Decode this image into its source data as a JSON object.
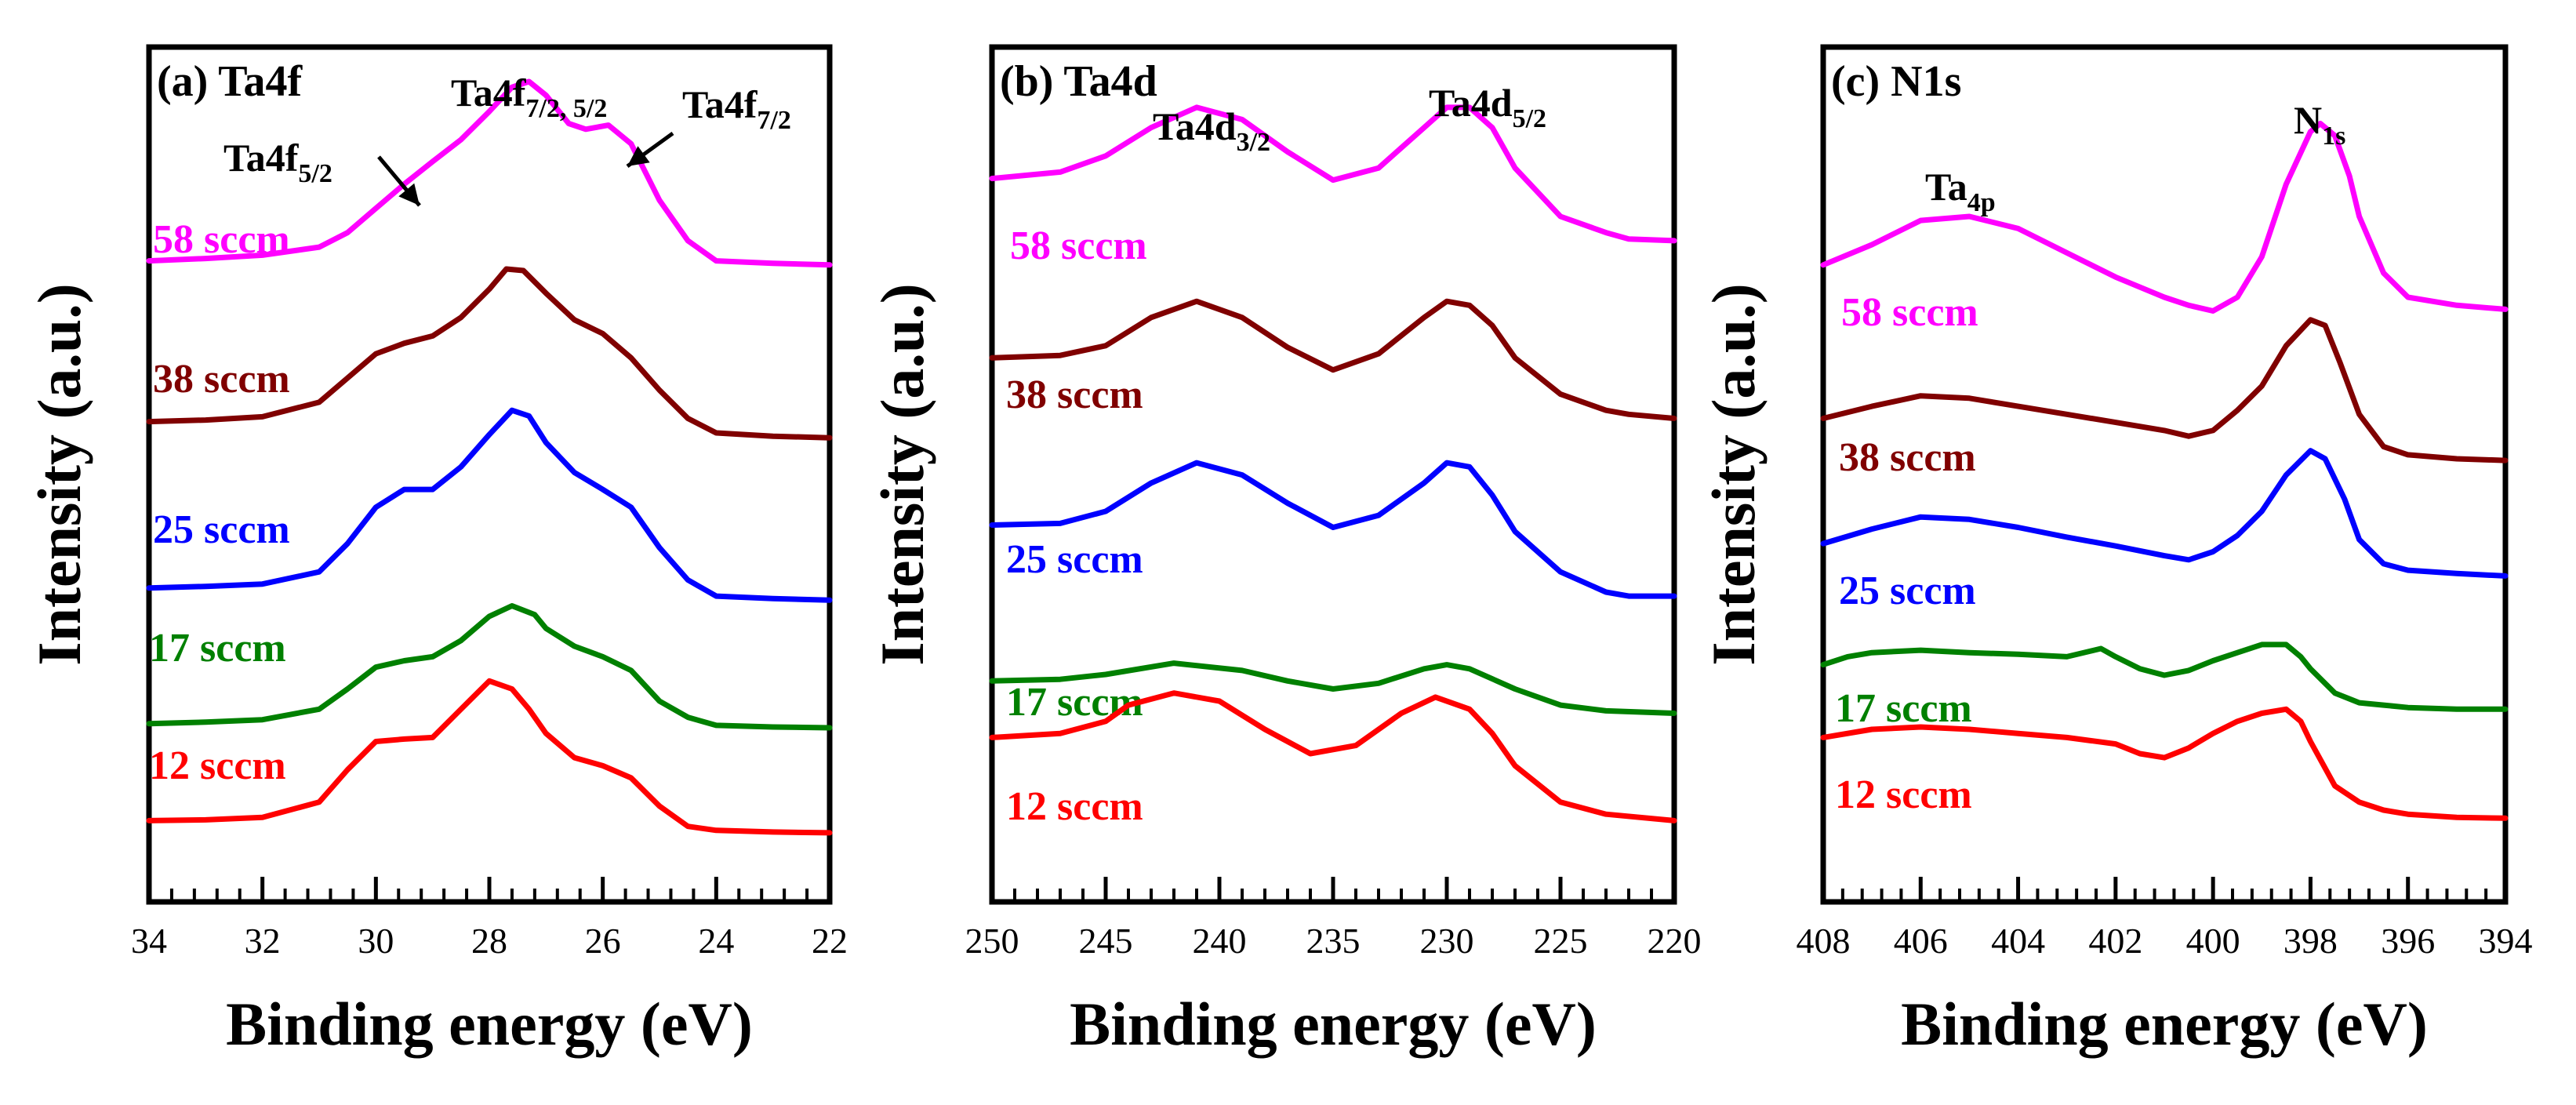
{
  "chart_data": [
    {
      "type": "line",
      "title": "(a) Ta4f",
      "xlabel": "Binding energy (eV)",
      "ylabel": "Intensity (a.u.)",
      "xlim": [
        34,
        22
      ],
      "ylim": [
        0,
        1
      ],
      "xticks": [
        "34",
        "32",
        "30",
        "28",
        "26",
        "24",
        "22"
      ],
      "xtick_values": [
        34,
        32,
        30,
        28,
        26,
        24,
        22
      ],
      "annotations": [
        {
          "base": "Ta4f",
          "sub": "5/2",
          "x": 29.3,
          "y": 0.877
        },
        {
          "base": "Ta4f",
          "sub": "7/2, 5/2",
          "x": 27.3,
          "y": 0.94
        },
        {
          "base": "Ta4f",
          "sub": "7/2",
          "x": 25.8,
          "y": 0.92
        }
      ],
      "series": [
        {
          "name": "58 sccm",
          "color": "#ff00ff",
          "x": [
            34,
            33,
            32,
            31,
            30.5,
            30,
            29.5,
            29,
            28.5,
            28,
            27.6,
            27.3,
            27,
            26.6,
            26.3,
            25.9,
            25.5,
            25,
            24.5,
            24,
            23,
            22
          ],
          "y": [
            0.745,
            0.748,
            0.752,
            0.762,
            0.78,
            0.81,
            0.84,
            0.868,
            0.895,
            0.93,
            0.96,
            0.967,
            0.95,
            0.915,
            0.908,
            0.913,
            0.89,
            0.82,
            0.77,
            0.745,
            0.742,
            0.74
          ]
        },
        {
          "name": "38 sccm",
          "color": "#800000",
          "x": [
            34,
            33,
            32,
            31,
            30.5,
            30,
            29.5,
            29,
            28.5,
            28,
            27.7,
            27.4,
            27,
            26.5,
            26,
            25.5,
            25,
            24.5,
            24,
            23,
            22
          ],
          "y": [
            0.546,
            0.548,
            0.552,
            0.57,
            0.6,
            0.63,
            0.643,
            0.652,
            0.675,
            0.71,
            0.735,
            0.733,
            0.705,
            0.672,
            0.655,
            0.625,
            0.585,
            0.55,
            0.532,
            0.528,
            0.526
          ]
        },
        {
          "name": "25 sccm",
          "color": "#0000ff",
          "x": [
            34,
            33,
            32,
            31,
            30.5,
            30,
            29.5,
            29,
            28.5,
            28,
            27.6,
            27.3,
            27,
            26.5,
            26,
            25.5,
            25,
            24.5,
            24,
            23,
            22
          ],
          "y": [
            0.34,
            0.342,
            0.345,
            0.36,
            0.395,
            0.44,
            0.462,
            0.462,
            0.49,
            0.53,
            0.56,
            0.553,
            0.52,
            0.483,
            0.462,
            0.44,
            0.39,
            0.35,
            0.33,
            0.327,
            0.325
          ]
        },
        {
          "name": "17 sccm",
          "color": "#008000",
          "x": [
            34,
            33,
            32,
            31,
            30.5,
            30,
            29.5,
            29,
            28.5,
            28,
            27.6,
            27.2,
            27,
            26.5,
            26,
            25.5,
            25,
            24.5,
            24,
            23,
            22
          ],
          "y": [
            0.172,
            0.174,
            0.177,
            0.19,
            0.215,
            0.242,
            0.25,
            0.255,
            0.275,
            0.305,
            0.318,
            0.307,
            0.29,
            0.268,
            0.255,
            0.238,
            0.2,
            0.18,
            0.17,
            0.168,
            0.167
          ]
        },
        {
          "name": "12 sccm",
          "color": "#ff0000",
          "x": [
            34,
            33,
            32,
            31,
            30.5,
            30,
            29.5,
            29,
            28.5,
            28,
            27.6,
            27.3,
            27,
            26.5,
            26,
            25.5,
            25,
            24.5,
            24,
            23,
            22
          ],
          "y": [
            0.052,
            0.053,
            0.056,
            0.075,
            0.115,
            0.15,
            0.153,
            0.155,
            0.19,
            0.225,
            0.215,
            0.19,
            0.16,
            0.13,
            0.12,
            0.105,
            0.07,
            0.045,
            0.04,
            0.038,
            0.037
          ]
        }
      ]
    },
    {
      "type": "line",
      "title": "(b) Ta4d",
      "xlabel": "Binding energy (eV)",
      "ylabel": "Intensity (a.u.)",
      "xlim": [
        250,
        220
      ],
      "ylim": [
        0,
        1
      ],
      "xticks": [
        "250",
        "245",
        "240",
        "235",
        "230",
        "225",
        "220"
      ],
      "xtick_values": [
        250,
        245,
        240,
        235,
        230,
        225,
        220
      ],
      "annotations": [
        {
          "base": "Ta4d",
          "sub": "3/2",
          "x": 241,
          "y": 0.95
        },
        {
          "base": "Ta4d",
          "sub": "5/2",
          "x": 229.5,
          "y": 0.95
        }
      ],
      "series": [
        {
          "name": "58 sccm",
          "color": "#ff00ff",
          "x": [
            250,
            247,
            245,
            243,
            241,
            239,
            237,
            235,
            233,
            231,
            230,
            229,
            228,
            227,
            225,
            223,
            222,
            220
          ],
          "y": [
            0.847,
            0.855,
            0.875,
            0.91,
            0.935,
            0.92,
            0.88,
            0.845,
            0.86,
            0.91,
            0.935,
            0.935,
            0.91,
            0.86,
            0.8,
            0.78,
            0.772,
            0.77
          ]
        },
        {
          "name": "38 sccm",
          "color": "#800000",
          "x": [
            250,
            247,
            245,
            243,
            241,
            239,
            237,
            235,
            233,
            231,
            230,
            229,
            228,
            227,
            225,
            223,
            222,
            220
          ],
          "y": [
            0.625,
            0.628,
            0.64,
            0.675,
            0.695,
            0.675,
            0.638,
            0.61,
            0.63,
            0.675,
            0.695,
            0.69,
            0.665,
            0.625,
            0.58,
            0.56,
            0.555,
            0.55
          ]
        },
        {
          "name": "25 sccm",
          "color": "#0000ff",
          "x": [
            250,
            247,
            245,
            243,
            241,
            239,
            237,
            235,
            233,
            231,
            230,
            229,
            228,
            227,
            225,
            223,
            222,
            220
          ],
          "y": [
            0.418,
            0.42,
            0.435,
            0.47,
            0.495,
            0.48,
            0.445,
            0.415,
            0.43,
            0.47,
            0.495,
            0.49,
            0.455,
            0.41,
            0.36,
            0.335,
            0.33,
            0.33
          ]
        },
        {
          "name": "17 sccm",
          "color": "#008000",
          "x": [
            250,
            247,
            245,
            242,
            239,
            237,
            235,
            233,
            231,
            230,
            229,
            227,
            225,
            223,
            220
          ],
          "y": [
            0.225,
            0.227,
            0.233,
            0.247,
            0.238,
            0.225,
            0.215,
            0.222,
            0.24,
            0.245,
            0.24,
            0.215,
            0.195,
            0.188,
            0.185
          ]
        },
        {
          "name": "12 sccm",
          "color": "#ff0000",
          "x": [
            250,
            247,
            245,
            244,
            242,
            240,
            238,
            236,
            234,
            232,
            230.5,
            229,
            228,
            227,
            225,
            223,
            220
          ],
          "y": [
            0.155,
            0.16,
            0.175,
            0.195,
            0.21,
            0.2,
            0.165,
            0.135,
            0.145,
            0.185,
            0.205,
            0.19,
            0.16,
            0.12,
            0.075,
            0.06,
            0.052
          ]
        }
      ]
    },
    {
      "type": "line",
      "title": "(c) N1s",
      "xlabel": "Binding energy (eV)",
      "ylabel": "Intensity (a.u.)",
      "xlim": [
        408,
        394
      ],
      "ylim": [
        0,
        1
      ],
      "xticks": [
        "408",
        "406",
        "404",
        "402",
        "400",
        "398",
        "396",
        "394"
      ],
      "xtick_values": [
        408,
        406,
        404,
        402,
        400,
        398,
        396,
        394
      ],
      "annotations": [
        {
          "base": "Ta",
          "sub": "4p",
          "x": 405,
          "y": 0.86
        },
        {
          "base": "N",
          "sub": "1s",
          "x": 397.7,
          "y": 0.94
        }
      ],
      "series": [
        {
          "name": "58 sccm",
          "color": "#ff00ff",
          "x": [
            408,
            407,
            406,
            405,
            404,
            403,
            402,
            401,
            400.5,
            400,
            399.5,
            399,
            398.5,
            398,
            397.8,
            397.5,
            397.2,
            397,
            396.5,
            396,
            395,
            394
          ],
          "y": [
            0.74,
            0.765,
            0.795,
            0.8,
            0.785,
            0.755,
            0.725,
            0.7,
            0.69,
            0.683,
            0.7,
            0.75,
            0.84,
            0.905,
            0.915,
            0.9,
            0.85,
            0.8,
            0.73,
            0.7,
            0.69,
            0.685
          ]
        },
        {
          "name": "38 sccm",
          "color": "#800000",
          "x": [
            408,
            407,
            406,
            405,
            404,
            403,
            402,
            401,
            400.5,
            400,
            399.5,
            399,
            398.5,
            398,
            397.7,
            397.4,
            397,
            396.5,
            396,
            395,
            394
          ],
          "y": [
            0.55,
            0.565,
            0.578,
            0.575,
            0.565,
            0.555,
            0.545,
            0.535,
            0.528,
            0.535,
            0.56,
            0.59,
            0.64,
            0.672,
            0.665,
            0.62,
            0.555,
            0.515,
            0.505,
            0.5,
            0.498
          ]
        },
        {
          "name": "25 sccm",
          "color": "#0000ff",
          "x": [
            408,
            407,
            406,
            405,
            404,
            403,
            402,
            401,
            400.5,
            400,
            399.5,
            399,
            398.5,
            398,
            397.7,
            397.3,
            397,
            396.5,
            396,
            395,
            394
          ],
          "y": [
            0.395,
            0.413,
            0.428,
            0.425,
            0.415,
            0.403,
            0.392,
            0.38,
            0.375,
            0.385,
            0.405,
            0.435,
            0.48,
            0.51,
            0.5,
            0.45,
            0.4,
            0.37,
            0.362,
            0.358,
            0.355
          ]
        },
        {
          "name": "17 sccm",
          "color": "#008000",
          "x": [
            408,
            407.5,
            407,
            406,
            405,
            404,
            403,
            402.3,
            402,
            401.5,
            401,
            400.5,
            400,
            399.5,
            399,
            398.5,
            398.2,
            398,
            397.5,
            397,
            396.5,
            396,
            395,
            394
          ],
          "y": [
            0.245,
            0.255,
            0.26,
            0.263,
            0.26,
            0.258,
            0.255,
            0.265,
            0.255,
            0.24,
            0.232,
            0.238,
            0.25,
            0.26,
            0.27,
            0.27,
            0.255,
            0.24,
            0.21,
            0.198,
            0.195,
            0.192,
            0.19,
            0.19
          ]
        },
        {
          "name": "12 sccm",
          "color": "#ff0000",
          "x": [
            408,
            407,
            406,
            405,
            404,
            403,
            402,
            401.5,
            401,
            400.5,
            400,
            399.5,
            399,
            398.5,
            398.2,
            398,
            397.5,
            397,
            396.5,
            396,
            395,
            394
          ],
          "y": [
            0.155,
            0.165,
            0.168,
            0.165,
            0.16,
            0.155,
            0.147,
            0.135,
            0.13,
            0.142,
            0.16,
            0.175,
            0.185,
            0.19,
            0.175,
            0.15,
            0.095,
            0.075,
            0.065,
            0.06,
            0.056,
            0.055
          ]
        }
      ]
    }
  ]
}
